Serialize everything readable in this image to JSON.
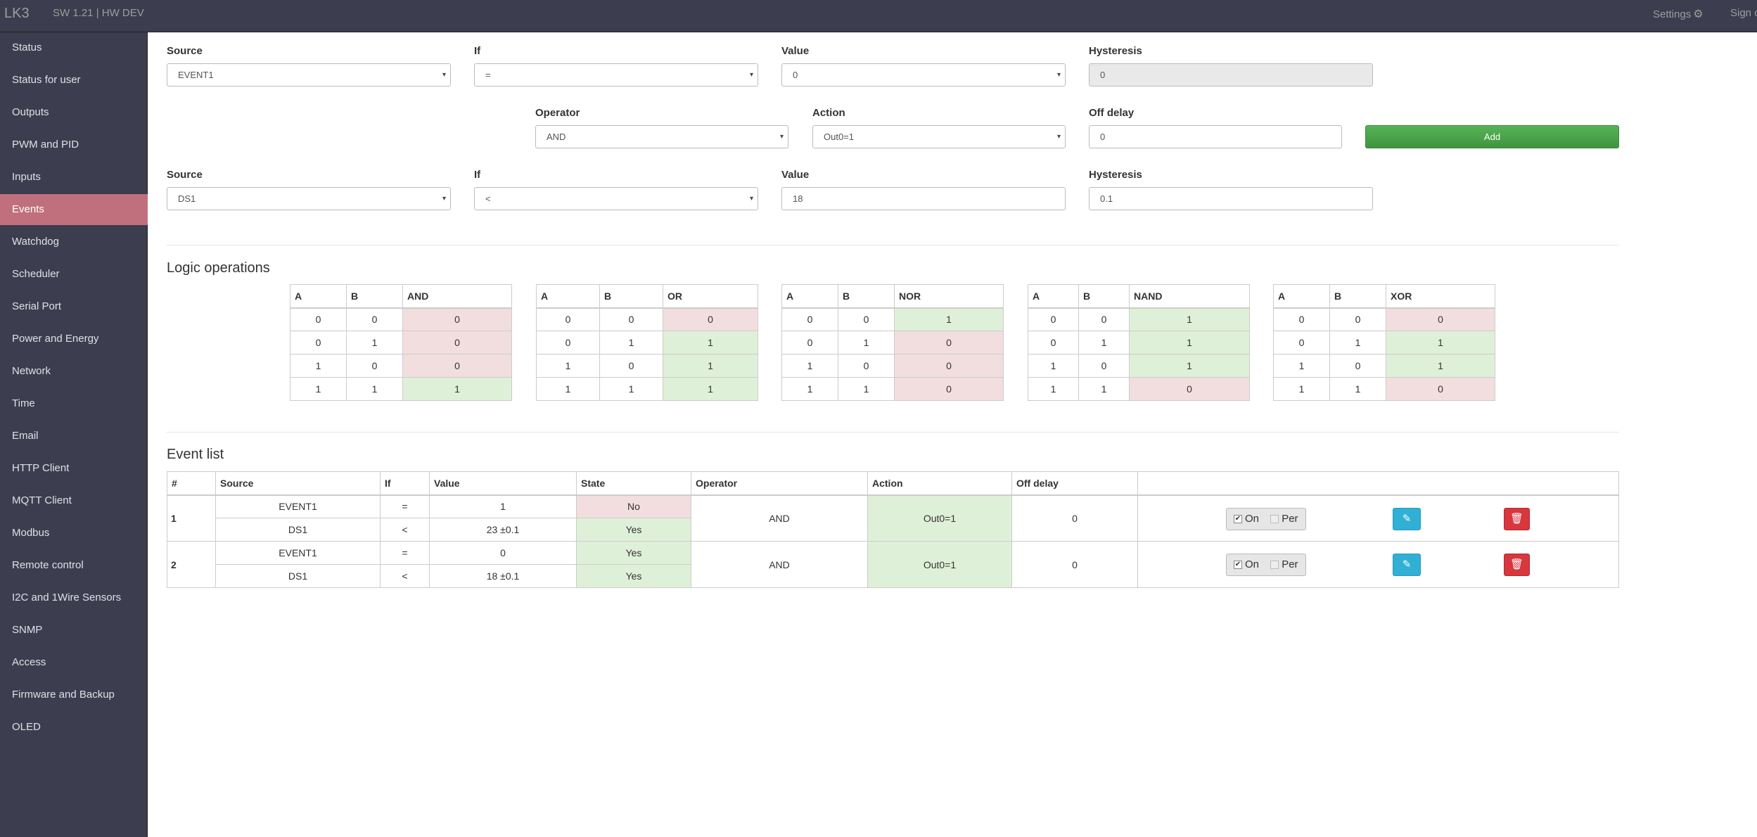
{
  "navbar": {
    "brand": "LK3",
    "version": "SW 1.21 | HW DEV",
    "settings": "Settings",
    "settings_icon": "⚙",
    "signout": "Sign out"
  },
  "sidebar": {
    "items": [
      {
        "label": "Status"
      },
      {
        "label": "Status for user"
      },
      {
        "label": "Outputs"
      },
      {
        "label": "PWM and PID"
      },
      {
        "label": "Inputs"
      },
      {
        "label": "Events"
      },
      {
        "label": "Watchdog"
      },
      {
        "label": "Scheduler"
      },
      {
        "label": "Serial Port"
      },
      {
        "label": "Power and Energy"
      },
      {
        "label": "Network"
      },
      {
        "label": "Time"
      },
      {
        "label": "Email"
      },
      {
        "label": "HTTP Client"
      },
      {
        "label": "MQTT Client"
      },
      {
        "label": "Modbus"
      },
      {
        "label": "Remote control"
      },
      {
        "label": "I2C and 1Wire Sensors"
      },
      {
        "label": "SNMP"
      },
      {
        "label": "Access"
      },
      {
        "label": "Firmware and Backup"
      },
      {
        "label": "OLED"
      }
    ],
    "active": "Events"
  },
  "form": {
    "row1": {
      "source_label": "Source",
      "source_value": "EVENT1",
      "if_label": "If",
      "if_value": "=",
      "value_label": "Value",
      "value_value": "0",
      "hyst_label": "Hysteresis",
      "hyst_value": "0"
    },
    "row2": {
      "operator_label": "Operator",
      "operator_value": "AND",
      "action_label": "Action",
      "action_value": "Out0=1",
      "offdelay_label": "Off delay",
      "offdelay_value": "0",
      "add_label": "Add"
    },
    "row3": {
      "source_label": "Source",
      "source_value": "DS1",
      "if_label": "If",
      "if_value": "<",
      "value_label": "Value",
      "value_value": "18",
      "hyst_label": "Hysteresis",
      "hyst_value": "0.1"
    }
  },
  "logic": {
    "title": "Logic operations",
    "tables": [
      {
        "op": "AND",
        "rows": [
          [
            "0",
            "0",
            "0"
          ],
          [
            "0",
            "1",
            "0"
          ],
          [
            "1",
            "0",
            "0"
          ],
          [
            "1",
            "1",
            "1"
          ]
        ]
      },
      {
        "op": "OR",
        "rows": [
          [
            "0",
            "0",
            "0"
          ],
          [
            "0",
            "1",
            "1"
          ],
          [
            "1",
            "0",
            "1"
          ],
          [
            "1",
            "1",
            "1"
          ]
        ]
      },
      {
        "op": "NOR",
        "rows": [
          [
            "0",
            "0",
            "1"
          ],
          [
            "0",
            "1",
            "0"
          ],
          [
            "1",
            "0",
            "0"
          ],
          [
            "1",
            "1",
            "0"
          ]
        ]
      },
      {
        "op": "NAND",
        "rows": [
          [
            "0",
            "0",
            "1"
          ],
          [
            "0",
            "1",
            "1"
          ],
          [
            "1",
            "0",
            "1"
          ],
          [
            "1",
            "1",
            "0"
          ]
        ]
      },
      {
        "op": "XOR",
        "rows": [
          [
            "0",
            "0",
            "0"
          ],
          [
            "0",
            "1",
            "1"
          ],
          [
            "1",
            "0",
            "1"
          ],
          [
            "1",
            "1",
            "0"
          ]
        ]
      }
    ],
    "col_a": "A",
    "col_b": "B"
  },
  "events": {
    "title": "Event list",
    "headers": {
      "num": "#",
      "source": "Source",
      "if": "If",
      "value": "Value",
      "state": "State",
      "operator": "Operator",
      "action": "Action",
      "offdelay": "Off delay"
    },
    "rows": [
      {
        "num": "1",
        "conds": [
          {
            "source": "EVENT1",
            "if": "=",
            "value": "1",
            "state": "No"
          },
          {
            "source": "DS1",
            "if": "<",
            "value": "23 ±0.1",
            "state": "Yes"
          }
        ],
        "operator": "AND",
        "action": "Out0=1",
        "offdelay": "0",
        "on_label": "On",
        "per_label": "Per"
      },
      {
        "num": "2",
        "conds": [
          {
            "source": "EVENT1",
            "if": "=",
            "value": "0",
            "state": "Yes"
          },
          {
            "source": "DS1",
            "if": "<",
            "value": "18 ±0.1",
            "state": "Yes"
          }
        ],
        "operator": "AND",
        "action": "Out0=1",
        "offdelay": "0",
        "on_label": "On",
        "per_label": "Per"
      }
    ]
  }
}
